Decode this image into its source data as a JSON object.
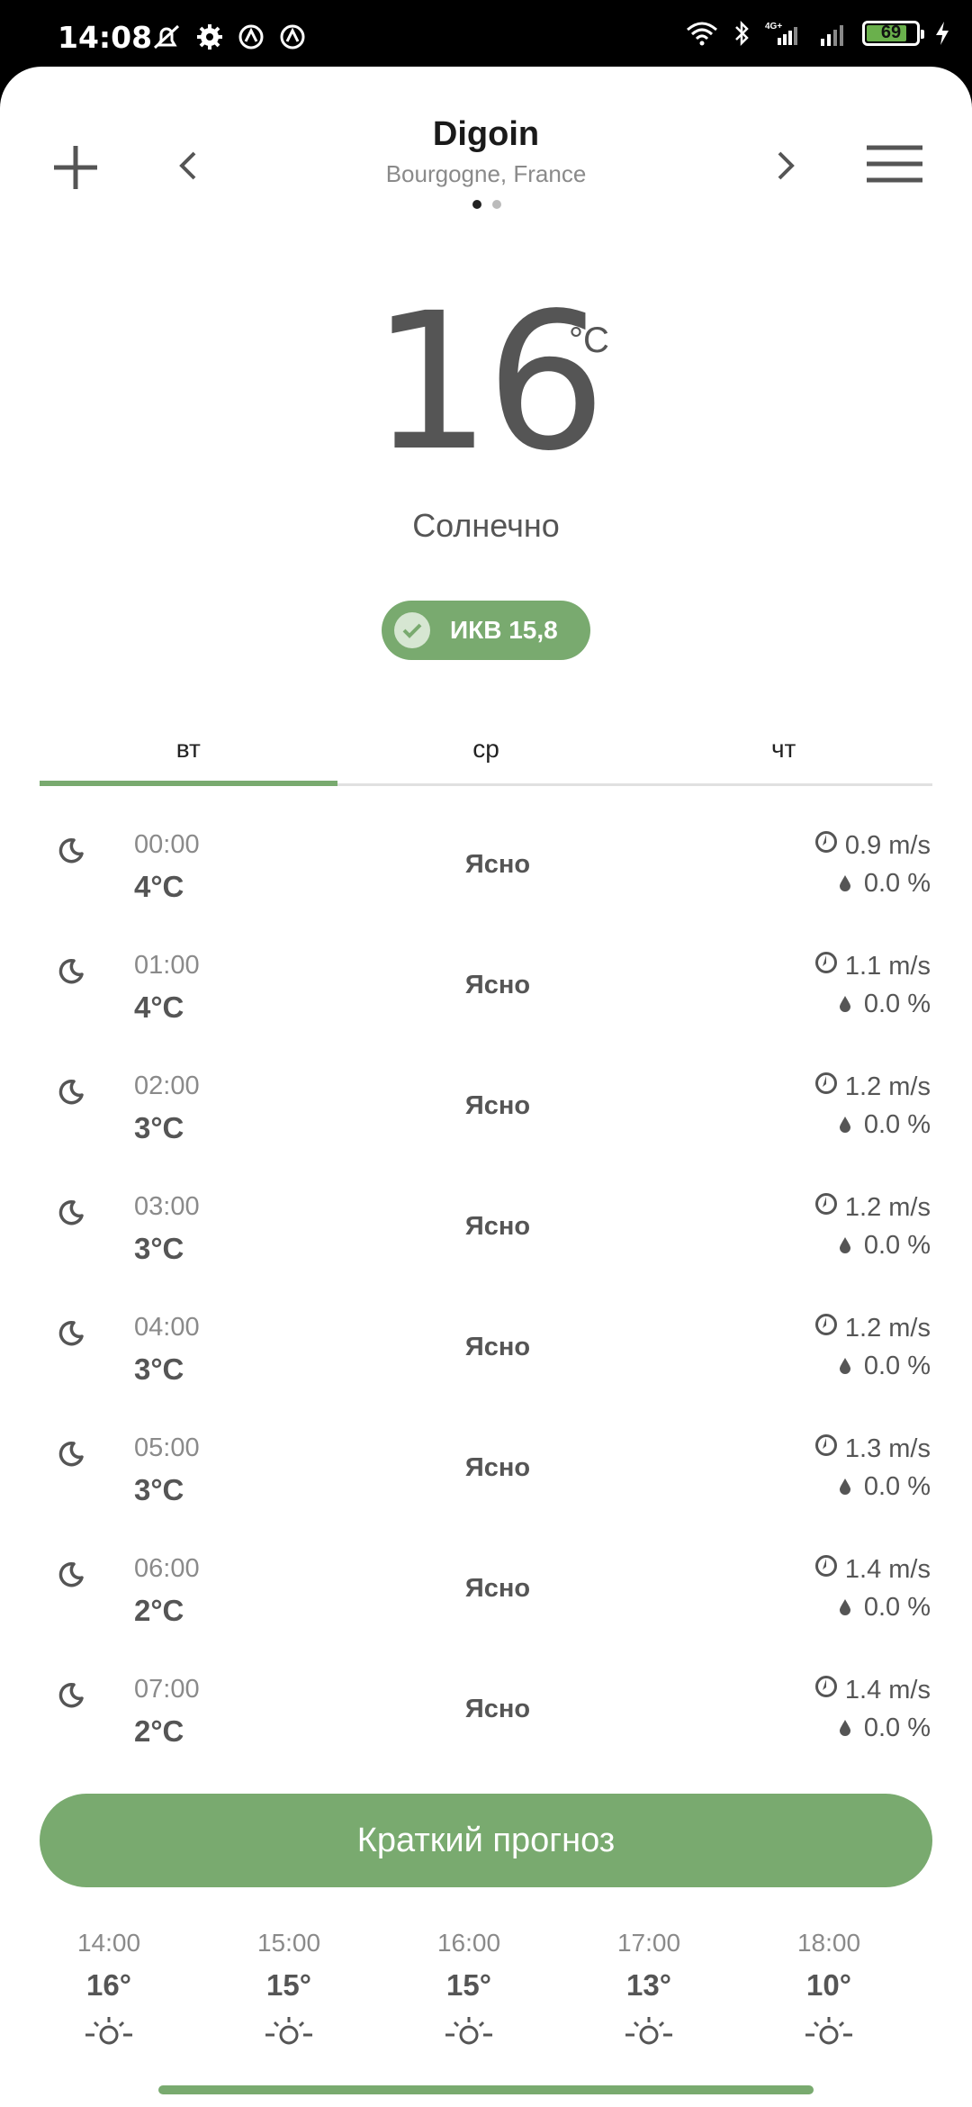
{
  "status_bar": {
    "time": "14:08",
    "battery": "69",
    "network": "4G+"
  },
  "header": {
    "city": "Digoin",
    "region": "Bourgogne, France"
  },
  "current": {
    "temperature": "16",
    "unit": "°C",
    "condition": "Солнечно",
    "aqi_label": "ИКВ 15,8"
  },
  "tabs": [
    {
      "label": "вт"
    },
    {
      "label": "ср"
    },
    {
      "label": "чт"
    }
  ],
  "hours": [
    {
      "time": "00:00",
      "temp": "4°C",
      "desc": "Ясно",
      "wind": "0.9 m/s",
      "rain": "0.0 %"
    },
    {
      "time": "01:00",
      "temp": "4°C",
      "desc": "Ясно",
      "wind": "1.1 m/s",
      "rain": "0.0 %"
    },
    {
      "time": "02:00",
      "temp": "3°C",
      "desc": "Ясно",
      "wind": "1.2 m/s",
      "rain": "0.0 %"
    },
    {
      "time": "03:00",
      "temp": "3°C",
      "desc": "Ясно",
      "wind": "1.2 m/s",
      "rain": "0.0 %"
    },
    {
      "time": "04:00",
      "temp": "3°C",
      "desc": "Ясно",
      "wind": "1.2 m/s",
      "rain": "0.0 %"
    },
    {
      "time": "05:00",
      "temp": "3°C",
      "desc": "Ясно",
      "wind": "1.3 m/s",
      "rain": "0.0 %"
    },
    {
      "time": "06:00",
      "temp": "2°C",
      "desc": "Ясно",
      "wind": "1.4 m/s",
      "rain": "0.0 %"
    },
    {
      "time": "07:00",
      "temp": "2°C",
      "desc": "Ясно",
      "wind": "1.4 m/s",
      "rain": "0.0 %"
    }
  ],
  "brief_button": "Краткий прогноз",
  "short_forecast": [
    {
      "time": "14:00",
      "temp": "16°"
    },
    {
      "time": "15:00",
      "temp": "15°"
    },
    {
      "time": "16:00",
      "temp": "15°"
    },
    {
      "time": "17:00",
      "temp": "13°"
    },
    {
      "time": "18:00",
      "temp": "10°"
    }
  ],
  "colors": {
    "accent": "#79aa6f",
    "text": "#555555",
    "muted": "#8a8a8a"
  },
  "icons": {
    "row_icon": "moon-icon",
    "wind_icon": "wind-direction-icon",
    "rain_icon": "raindrop-icon",
    "short_icon": "sun-icon"
  }
}
